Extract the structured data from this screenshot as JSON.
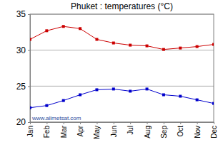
{
  "chart_data": {
    "type": "line",
    "title": "Phuket : temperatures (°C)",
    "categories": [
      "Jan",
      "Feb",
      "Mar",
      "Apr",
      "May",
      "Jun",
      "Jul",
      "Aug",
      "Sep",
      "Oct",
      "Nov",
      "Dec"
    ],
    "series": [
      {
        "color": "#cc0000",
        "marker": "square",
        "values": [
          31.5,
          32.7,
          33.3,
          33.0,
          31.5,
          31.0,
          30.7,
          30.6,
          30.1,
          30.3,
          30.5,
          30.8
        ]
      },
      {
        "color": "#0000cc",
        "marker": "square",
        "values": [
          22.0,
          22.3,
          23.0,
          23.8,
          24.5,
          24.6,
          24.3,
          24.6,
          23.8,
          23.6,
          23.1,
          22.6
        ]
      }
    ],
    "ylim": [
      20,
      35
    ],
    "yticks": [
      20,
      25,
      30,
      35
    ],
    "grid": true,
    "annotation": "www.allmetsat.com"
  }
}
